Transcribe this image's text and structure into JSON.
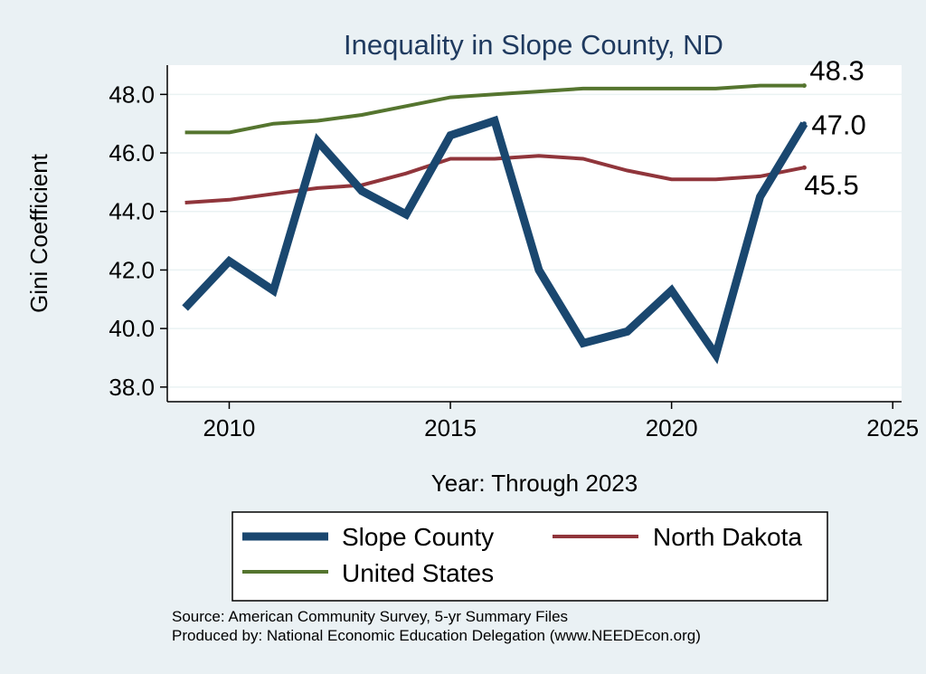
{
  "chart_data": {
    "type": "line",
    "title": "Inequality in Slope County, ND",
    "xlabel": "Year: Through 2023",
    "ylabel": "Gini Coefficient",
    "xlim": [
      2008.6,
      2025.2
    ],
    "ylim": [
      37.5,
      49.0
    ],
    "xticks": [
      2010,
      2015,
      2020,
      2025
    ],
    "yticks": [
      38.0,
      40.0,
      42.0,
      44.0,
      46.0,
      48.0
    ],
    "xtick_labels": [
      "2010",
      "2015",
      "2020",
      "2025"
    ],
    "ytick_labels": [
      "38.0",
      "40.0",
      "42.0",
      "44.0",
      "46.0",
      "48.0"
    ],
    "x": [
      2009,
      2010,
      2011,
      2012,
      2013,
      2014,
      2015,
      2016,
      2017,
      2018,
      2019,
      2020,
      2021,
      2022,
      2023
    ],
    "series": [
      {
        "name": "Slope County",
        "color": "#1a476f",
        "values": [
          40.7,
          42.3,
          41.3,
          46.4,
          44.7,
          43.9,
          46.6,
          47.1,
          42.0,
          39.5,
          39.9,
          41.3,
          39.1,
          44.5,
          47.0
        ],
        "end_label": "47.0"
      },
      {
        "name": "North Dakota",
        "color": "#90353b",
        "values": [
          44.3,
          44.4,
          44.6,
          44.8,
          44.9,
          45.3,
          45.8,
          45.8,
          45.9,
          45.8,
          45.4,
          45.1,
          45.1,
          45.2,
          45.5
        ],
        "end_label": "45.5"
      },
      {
        "name": "United States",
        "color": "#55752f",
        "values": [
          46.7,
          46.7,
          47.0,
          47.1,
          47.3,
          47.6,
          47.9,
          48.0,
          48.1,
          48.2,
          48.2,
          48.2,
          48.2,
          48.3,
          48.3
        ],
        "end_label": "48.3"
      }
    ],
    "legend": {
      "position": "bottom",
      "entries": [
        "Slope County",
        "North Dakota",
        "United States"
      ]
    },
    "grid": true
  },
  "notes": {
    "source": "Source: American Community Survey, 5-yr Summary Files",
    "produced_by": "Produced by: National Economic Education Delegation (www.NEEDEcon.org)"
  },
  "colors": {
    "background": "#eaf1f4",
    "plot_background": "#ffffff",
    "grid": "#eaf2f3"
  }
}
